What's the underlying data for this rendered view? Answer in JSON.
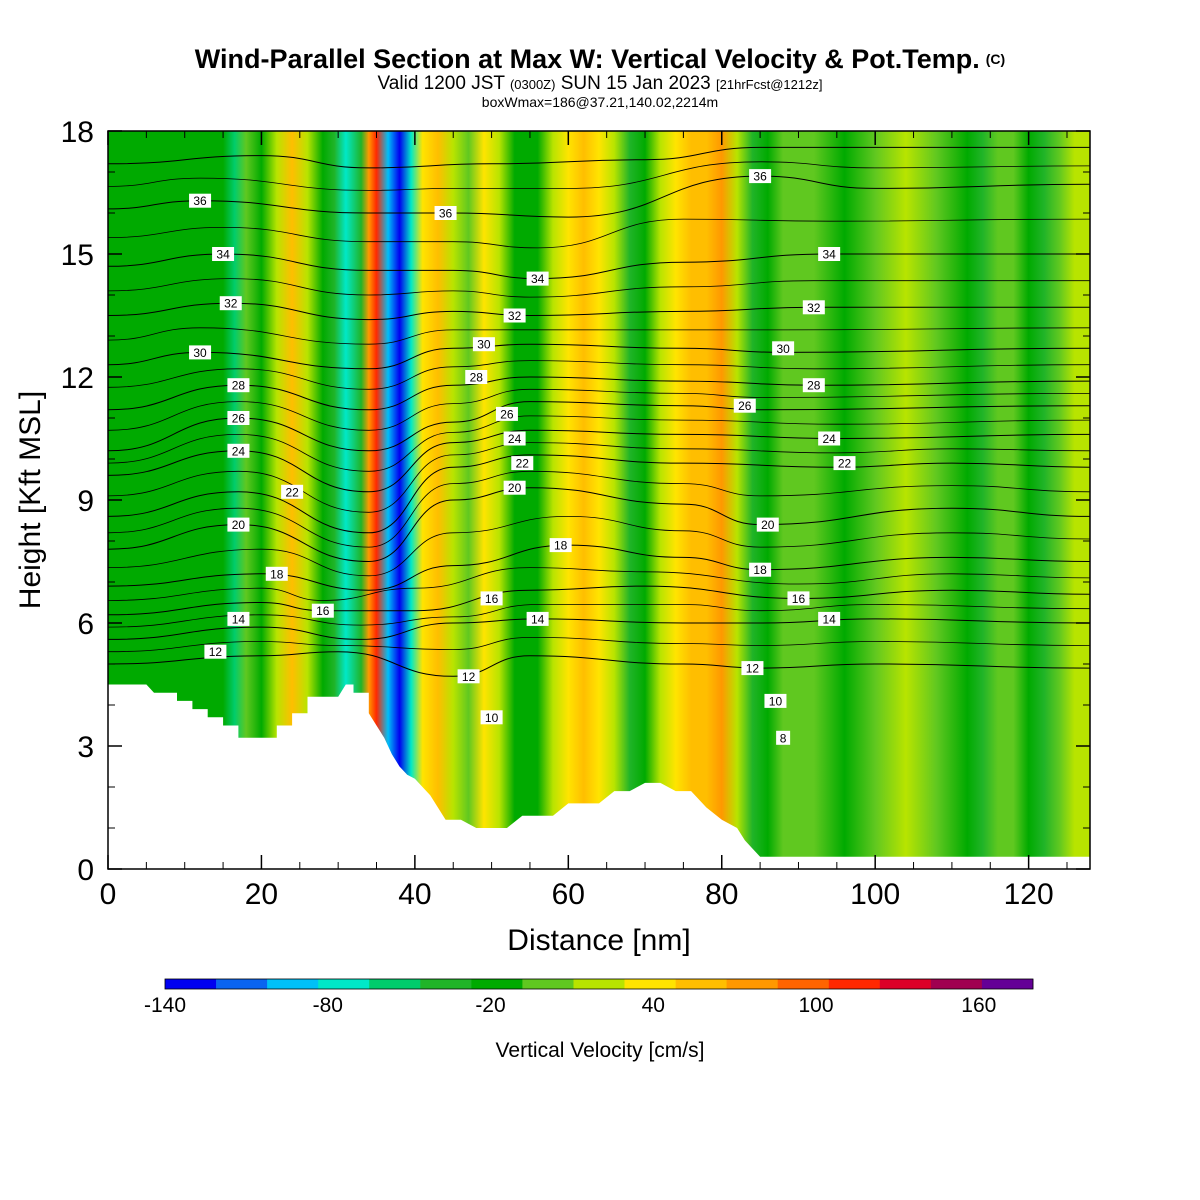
{
  "header": {
    "title_main": "Wind-Parallel Section at Max W: Vertical Velocity & Pot.Temp.",
    "title_copyright": "(C)",
    "valid_prefix": "Valid 1200 JST",
    "valid_utc": "(0300Z)",
    "valid_date": "SUN 15 Jan 2023",
    "forecast": "[21hrFcst@1212z]",
    "box_info": "boxWmax=186@37.21,140.02,2214m"
  },
  "chart_data": {
    "type": "heatmap",
    "xlabel": "Distance [nm]",
    "ylabel": "Height [Kft MSL]",
    "xlim": [
      0,
      128
    ],
    "ylim": [
      0,
      18
    ],
    "xticks": [
      0,
      20,
      40,
      60,
      80,
      100,
      120
    ],
    "yticks": [
      0,
      3,
      6,
      9,
      12,
      15,
      18
    ],
    "colorbar": {
      "title": "Vertical Velocity [cm/s]",
      "levels": [
        -140,
        -120,
        -100,
        -80,
        -60,
        -40,
        -20,
        0,
        20,
        40,
        60,
        80,
        100,
        120,
        140,
        160,
        180
      ],
      "tick_labels": [
        -140,
        -80,
        -20,
        40,
        100,
        160
      ],
      "colors": [
        "#0000f0",
        "#0a64f0",
        "#00c0f8",
        "#00e8c8",
        "#00cc6c",
        "#20b428",
        "#00aa00",
        "#60c820",
        "#b8e400",
        "#ffe400",
        "#ffbe00",
        "#ff9800",
        "#ff6400",
        "#ff2800",
        "#dc0028",
        "#a00050",
        "#640096"
      ]
    },
    "terrain_profile": [
      [
        0,
        4.5
      ],
      [
        5,
        4.5
      ],
      [
        6,
        4.3
      ],
      [
        9,
        4.3
      ],
      [
        9,
        4.1
      ],
      [
        11,
        4.1
      ],
      [
        11,
        3.9
      ],
      [
        13,
        3.9
      ],
      [
        13,
        3.7
      ],
      [
        15,
        3.7
      ],
      [
        15,
        3.5
      ],
      [
        17,
        3.5
      ],
      [
        17,
        3.2
      ],
      [
        20,
        3.2
      ],
      [
        22,
        3.2
      ],
      [
        22,
        3.5
      ],
      [
        24,
        3.5
      ],
      [
        24,
        3.8
      ],
      [
        26,
        3.8
      ],
      [
        26,
        4.2
      ],
      [
        30,
        4.2
      ],
      [
        31,
        4.5
      ],
      [
        32,
        4.5
      ],
      [
        32,
        4.3
      ],
      [
        34,
        4.3
      ],
      [
        34,
        3.8
      ],
      [
        35,
        3.5
      ],
      [
        36,
        3.2
      ],
      [
        37,
        2.8
      ],
      [
        38,
        2.5
      ],
      [
        39,
        2.3
      ],
      [
        40,
        2.2
      ],
      [
        41,
        2.0
      ],
      [
        42,
        1.8
      ],
      [
        43,
        1.5
      ],
      [
        44,
        1.2
      ],
      [
        46,
        1.2
      ],
      [
        48,
        1.0
      ],
      [
        52,
        1.0
      ],
      [
        54,
        1.3
      ],
      [
        58,
        1.3
      ],
      [
        60,
        1.6
      ],
      [
        64,
        1.6
      ],
      [
        66,
        1.9
      ],
      [
        68,
        1.9
      ],
      [
        70,
        2.1
      ],
      [
        72,
        2.1
      ],
      [
        74,
        1.9
      ],
      [
        76,
        1.9
      ],
      [
        78,
        1.5
      ],
      [
        80,
        1.2
      ],
      [
        82,
        1.0
      ],
      [
        83,
        0.7
      ],
      [
        84,
        0.5
      ],
      [
        85,
        0.3
      ],
      [
        128,
        0.3
      ]
    ],
    "columns": [
      [
        0,
        -20
      ],
      [
        8,
        -20
      ],
      [
        15,
        -20
      ],
      [
        16.5,
        -60
      ],
      [
        18,
        10
      ],
      [
        20,
        -20
      ],
      [
        22,
        30
      ],
      [
        24,
        60
      ],
      [
        26,
        20
      ],
      [
        28,
        -20
      ],
      [
        29.5,
        -40
      ],
      [
        31,
        -70
      ],
      [
        33,
        -40
      ],
      [
        34,
        80
      ],
      [
        35,
        120
      ],
      [
        36.5,
        -100
      ],
      [
        38,
        -130
      ],
      [
        39.5,
        -70
      ],
      [
        41,
        40
      ],
      [
        43,
        60
      ],
      [
        45,
        30
      ],
      [
        47,
        0
      ],
      [
        49,
        40
      ],
      [
        51,
        30
      ],
      [
        53,
        -20
      ],
      [
        56,
        -10
      ],
      [
        58,
        20
      ],
      [
        60,
        40
      ],
      [
        62,
        60
      ],
      [
        64,
        40
      ],
      [
        66,
        20
      ],
      [
        68,
        -30
      ],
      [
        70,
        -20
      ],
      [
        72,
        20
      ],
      [
        74,
        40
      ],
      [
        76,
        60
      ],
      [
        78,
        70
      ],
      [
        80,
        80
      ],
      [
        82,
        30
      ],
      [
        84,
        -40
      ],
      [
        86,
        -20
      ],
      [
        88,
        10
      ],
      [
        92,
        0
      ],
      [
        96,
        -10
      ],
      [
        100,
        10
      ],
      [
        104,
        20
      ],
      [
        108,
        0
      ],
      [
        112,
        -20
      ],
      [
        114,
        -40
      ],
      [
        116,
        0
      ],
      [
        118,
        0
      ],
      [
        120,
        -20
      ],
      [
        122,
        -40
      ],
      [
        124,
        10
      ],
      [
        126,
        30
      ],
      [
        128,
        20
      ]
    ],
    "isentropes": [
      {
        "label": "12",
        "points": [
          [
            0,
            5.0
          ],
          [
            20,
            5.2
          ],
          [
            30,
            5.3
          ],
          [
            45,
            4.7
          ],
          [
            55,
            5.2
          ],
          [
            75,
            5.0
          ],
          [
            85,
            4.9
          ],
          [
            100,
            5.0
          ],
          [
            128,
            4.9
          ]
        ]
      },
      {
        "label": "14",
        "points": [
          [
            0,
            5.6
          ],
          [
            20,
            5.9
          ],
          [
            33,
            5.6
          ],
          [
            45,
            6.0
          ],
          [
            56,
            6.1
          ],
          [
            75,
            6.0
          ],
          [
            85,
            6.0
          ],
          [
            100,
            6.1
          ],
          [
            128,
            6.0
          ]
        ]
      },
      {
        "label": "16",
        "points": [
          [
            0,
            6.2
          ],
          [
            20,
            6.5
          ],
          [
            28,
            6.3
          ],
          [
            40,
            6.3
          ],
          [
            55,
            6.8
          ],
          [
            70,
            6.9
          ],
          [
            90,
            6.6
          ],
          [
            110,
            6.8
          ],
          [
            128,
            6.7
          ]
        ]
      },
      {
        "label": "18",
        "points": [
          [
            0,
            6.9
          ],
          [
            20,
            7.2
          ],
          [
            34,
            6.8
          ],
          [
            45,
            7.4
          ],
          [
            60,
            7.9
          ],
          [
            75,
            7.6
          ],
          [
            85,
            7.3
          ],
          [
            110,
            7.6
          ],
          [
            128,
            7.5
          ]
        ]
      },
      {
        "label": "20",
        "points": [
          [
            0,
            7.8
          ],
          [
            17,
            8.4
          ],
          [
            34,
            7.5
          ],
          [
            45,
            9.0
          ],
          [
            55,
            9.3
          ],
          [
            75,
            8.9
          ],
          [
            85,
            8.4
          ],
          [
            110,
            8.8
          ],
          [
            128,
            8.6
          ]
        ]
      },
      {
        "label": "22",
        "points": [
          [
            0,
            8.6
          ],
          [
            17,
            9.2
          ],
          [
            34,
            8.2
          ],
          [
            45,
            9.8
          ],
          [
            55,
            10.1
          ],
          [
            75,
            9.9
          ],
          [
            95,
            9.8
          ],
          [
            110,
            9.9
          ],
          [
            128,
            9.8
          ]
        ]
      },
      {
        "label": "24",
        "points": [
          [
            0,
            9.6
          ],
          [
            17,
            10.2
          ],
          [
            34,
            9.2
          ],
          [
            45,
            10.4
          ],
          [
            55,
            10.7
          ],
          [
            75,
            10.6
          ],
          [
            95,
            10.5
          ],
          [
            128,
            10.6
          ]
        ]
      },
      {
        "label": "26",
        "points": [
          [
            0,
            10.2
          ],
          [
            17,
            11.0
          ],
          [
            34,
            10.2
          ],
          [
            45,
            10.9
          ],
          [
            55,
            11.4
          ],
          [
            75,
            11.3
          ],
          [
            85,
            11.2
          ],
          [
            128,
            11.3
          ]
        ]
      },
      {
        "label": "28",
        "points": [
          [
            0,
            11.2
          ],
          [
            17,
            11.8
          ],
          [
            34,
            11.2
          ],
          [
            45,
            11.8
          ],
          [
            55,
            12.0
          ],
          [
            75,
            11.9
          ],
          [
            92,
            11.8
          ],
          [
            128,
            11.9
          ]
        ]
      },
      {
        "label": "30",
        "points": [
          [
            0,
            12.3
          ],
          [
            12,
            12.6
          ],
          [
            34,
            12.2
          ],
          [
            45,
            12.7
          ],
          [
            55,
            12.8
          ],
          [
            75,
            12.7
          ],
          [
            88,
            12.6
          ],
          [
            128,
            12.7
          ]
        ]
      },
      {
        "label": "32",
        "points": [
          [
            0,
            13.5
          ],
          [
            16,
            13.8
          ],
          [
            34,
            13.4
          ],
          [
            45,
            13.6
          ],
          [
            55,
            13.5
          ],
          [
            75,
            13.6
          ],
          [
            92,
            13.7
          ],
          [
            128,
            13.7
          ]
        ]
      },
      {
        "label": "34",
        "points": [
          [
            0,
            14.7
          ],
          [
            15,
            15.0
          ],
          [
            34,
            14.6
          ],
          [
            45,
            14.6
          ],
          [
            56,
            14.4
          ],
          [
            75,
            14.8
          ],
          [
            94,
            15.0
          ],
          [
            128,
            15.0
          ]
        ]
      },
      {
        "label": "36",
        "points": [
          [
            0,
            16.1
          ],
          [
            12,
            16.3
          ],
          [
            34,
            16.0
          ],
          [
            45,
            16.0
          ],
          [
            60,
            15.9
          ],
          [
            85,
            16.9
          ],
          [
            100,
            16.6
          ],
          [
            128,
            16.7
          ]
        ]
      },
      {
        "label": "",
        "points": [
          [
            0,
            17.2
          ],
          [
            20,
            17.4
          ],
          [
            34,
            17.1
          ],
          [
            50,
            17.2
          ],
          [
            70,
            17.3
          ],
          [
            85,
            17.6
          ],
          [
            128,
            17.6
          ]
        ]
      }
    ],
    "contour_labels": [
      {
        "text": "36",
        "x": 12,
        "y": 16.3
      },
      {
        "text": "36",
        "x": 44,
        "y": 16.0
      },
      {
        "text": "36",
        "x": 85,
        "y": 16.9
      },
      {
        "text": "34",
        "x": 15,
        "y": 15.0
      },
      {
        "text": "34",
        "x": 56,
        "y": 14.4
      },
      {
        "text": "34",
        "x": 94,
        "y": 15.0
      },
      {
        "text": "32",
        "x": 16,
        "y": 13.8
      },
      {
        "text": "32",
        "x": 53,
        "y": 13.5
      },
      {
        "text": "32",
        "x": 92,
        "y": 13.7
      },
      {
        "text": "30",
        "x": 12,
        "y": 12.6
      },
      {
        "text": "30",
        "x": 49,
        "y": 12.8
      },
      {
        "text": "30",
        "x": 88,
        "y": 12.7
      },
      {
        "text": "28",
        "x": 17,
        "y": 11.8
      },
      {
        "text": "28",
        "x": 48,
        "y": 12.0
      },
      {
        "text": "28",
        "x": 92,
        "y": 11.8
      },
      {
        "text": "26",
        "x": 17,
        "y": 11.0
      },
      {
        "text": "26",
        "x": 52,
        "y": 11.1
      },
      {
        "text": "26",
        "x": 83,
        "y": 11.3
      },
      {
        "text": "24",
        "x": 17,
        "y": 10.2
      },
      {
        "text": "24",
        "x": 53,
        "y": 10.5
      },
      {
        "text": "24",
        "x": 94,
        "y": 10.5
      },
      {
        "text": "22",
        "x": 24,
        "y": 9.2
      },
      {
        "text": "22",
        "x": 54,
        "y": 9.9
      },
      {
        "text": "22",
        "x": 96,
        "y": 9.9
      },
      {
        "text": "20",
        "x": 17,
        "y": 8.4
      },
      {
        "text": "20",
        "x": 53,
        "y": 9.3
      },
      {
        "text": "20",
        "x": 86,
        "y": 8.4
      },
      {
        "text": "18",
        "x": 22,
        "y": 7.2
      },
      {
        "text": "18",
        "x": 59,
        "y": 7.9
      },
      {
        "text": "18",
        "x": 85,
        "y": 7.3
      },
      {
        "text": "16",
        "x": 28,
        "y": 6.3
      },
      {
        "text": "16",
        "x": 50,
        "y": 6.6
      },
      {
        "text": "16",
        "x": 90,
        "y": 6.6
      },
      {
        "text": "14",
        "x": 17,
        "y": 6.1
      },
      {
        "text": "14",
        "x": 56,
        "y": 6.1
      },
      {
        "text": "14",
        "x": 94,
        "y": 6.1
      },
      {
        "text": "12",
        "x": 14,
        "y": 5.3
      },
      {
        "text": "12",
        "x": 47,
        "y": 4.7
      },
      {
        "text": "12",
        "x": 84,
        "y": 4.9
      },
      {
        "text": "10",
        "x": 50,
        "y": 3.7
      },
      {
        "text": "10",
        "x": 87,
        "y": 4.1
      },
      {
        "text": "8",
        "x": 88,
        "y": 3.2
      }
    ]
  }
}
